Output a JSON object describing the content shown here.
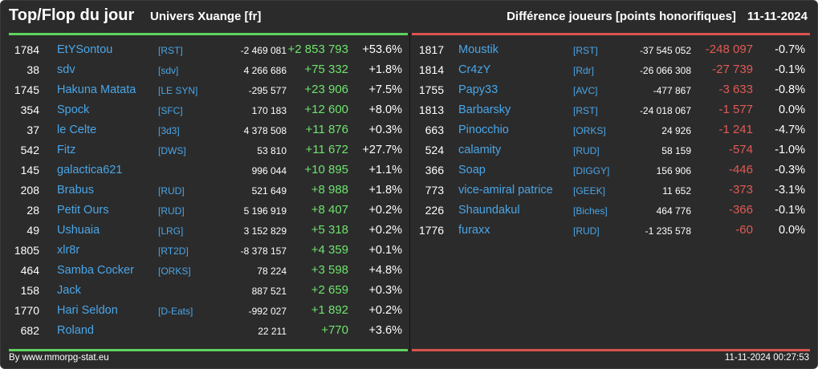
{
  "header": {
    "title": "Top/Flop du jour",
    "universe": "Univers Xuange [fr]",
    "metric": "Différence joueurs [points honorifiques]",
    "date": "11-11-2024"
  },
  "colors": {
    "top_accent": "#5fd35f",
    "flop_accent": "#d9534f",
    "link": "#4aa6e8",
    "background": "#2b2b2b"
  },
  "top": [
    {
      "rank": "1784",
      "name": "EtYSontou",
      "alliance": "[RST]",
      "total": "-2 469 081",
      "diff": "+2 853 793",
      "pct": "+53.6%"
    },
    {
      "rank": "38",
      "name": "sdv",
      "alliance": "[sdv]",
      "total": "4 266 686",
      "diff": "+75 332",
      "pct": "+1.8%"
    },
    {
      "rank": "1745",
      "name": "Hakuna Matata",
      "alliance": "[LE SYN]",
      "total": "-295 577",
      "diff": "+23 906",
      "pct": "+7.5%"
    },
    {
      "rank": "354",
      "name": "Spock",
      "alliance": "[SFC]",
      "total": "170 183",
      "diff": "+12 600",
      "pct": "+8.0%"
    },
    {
      "rank": "37",
      "name": "le Celte",
      "alliance": "[3d3]",
      "total": "4 378 508",
      "diff": "+11 876",
      "pct": "+0.3%"
    },
    {
      "rank": "542",
      "name": "Fitz",
      "alliance": "[DWS]",
      "total": "53 810",
      "diff": "+11 672",
      "pct": "+27.7%"
    },
    {
      "rank": "145",
      "name": "galactica621",
      "alliance": "",
      "total": "996 044",
      "diff": "+10 895",
      "pct": "+1.1%"
    },
    {
      "rank": "208",
      "name": "Brabus",
      "alliance": "[RUD]",
      "total": "521 649",
      "diff": "+8 988",
      "pct": "+1.8%"
    },
    {
      "rank": "28",
      "name": "Petit Ours",
      "alliance": "[RUD]",
      "total": "5 196 919",
      "diff": "+8 407",
      "pct": "+0.2%"
    },
    {
      "rank": "49",
      "name": "Ushuaia",
      "alliance": "[LRG]",
      "total": "3 152 829",
      "diff": "+5 318",
      "pct": "+0.2%"
    },
    {
      "rank": "1805",
      "name": "xlr8r",
      "alliance": "[RT2D]",
      "total": "-8 378 157",
      "diff": "+4 359",
      "pct": "+0.1%"
    },
    {
      "rank": "464",
      "name": "Samba Cocker",
      "alliance": "[ORKS]",
      "total": "78 224",
      "diff": "+3 598",
      "pct": "+4.8%"
    },
    {
      "rank": "158",
      "name": "Jack",
      "alliance": "",
      "total": "887 521",
      "diff": "+2 659",
      "pct": "+0.3%"
    },
    {
      "rank": "1770",
      "name": "Hari Seldon",
      "alliance": "[D-Eats]",
      "total": "-992 027",
      "diff": "+1 892",
      "pct": "+0.2%"
    },
    {
      "rank": "682",
      "name": "Roland",
      "alliance": "",
      "total": "22 211",
      "diff": "+770",
      "pct": "+3.6%"
    }
  ],
  "flop": [
    {
      "rank": "1817",
      "name": "Moustik",
      "alliance": "[RST]",
      "total": "-37 545 052",
      "diff": "-248 097",
      "pct": "-0.7%"
    },
    {
      "rank": "1814",
      "name": "Cr4zY",
      "alliance": "[Rdr]",
      "total": "-26 066 308",
      "diff": "-27 739",
      "pct": "-0.1%"
    },
    {
      "rank": "1755",
      "name": "Papy33",
      "alliance": "[AVC]",
      "total": "-477 867",
      "diff": "-3 633",
      "pct": "-0.8%"
    },
    {
      "rank": "1813",
      "name": "Barbarsky",
      "alliance": "[RST]",
      "total": "-24 018 067",
      "diff": "-1 577",
      "pct": "0.0%"
    },
    {
      "rank": "663",
      "name": "Pinocchio",
      "alliance": "[ORKS]",
      "total": "24 926",
      "diff": "-1 241",
      "pct": "-4.7%"
    },
    {
      "rank": "524",
      "name": "calamity",
      "alliance": "[RUD]",
      "total": "58 159",
      "diff": "-574",
      "pct": "-1.0%"
    },
    {
      "rank": "366",
      "name": "Soap",
      "alliance": "[DIGGY]",
      "total": "156 906",
      "diff": "-446",
      "pct": "-0.3%"
    },
    {
      "rank": "773",
      "name": "vice-amiral patrice",
      "alliance": "[GEEK]",
      "total": "11 652",
      "diff": "-373",
      "pct": "-3.1%"
    },
    {
      "rank": "226",
      "name": "Shaundakul",
      "alliance": "[Biches]",
      "total": "464 776",
      "diff": "-366",
      "pct": "-0.1%"
    },
    {
      "rank": "1776",
      "name": "furaxx",
      "alliance": "[RUD]",
      "total": "-1 235 578",
      "diff": "-60",
      "pct": "0.0%"
    }
  ],
  "footer": {
    "credit": "By www.mmorpg-stat.eu",
    "timestamp": "11-11-2024 00:27:53"
  }
}
